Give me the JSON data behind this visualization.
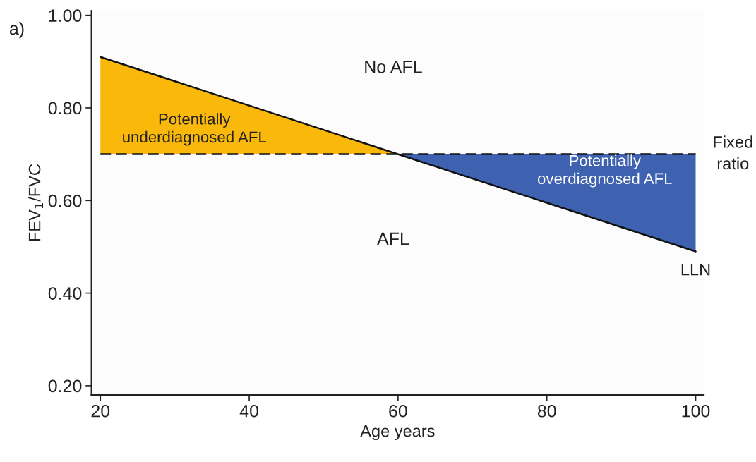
{
  "chart_data": {
    "type": "line",
    "xlabel": "Age years",
    "ylabel": "FEV$_{1}$/FVC",
    "xlim": [
      18.8,
      101.1
    ],
    "ylim": [
      0.18,
      1.01
    ],
    "xticks": [
      20,
      40,
      60,
      80,
      100
    ],
    "yticks": [
      {
        "value": 0.2,
        "label": "0.20"
      },
      {
        "value": 0.4,
        "label": "0.40"
      },
      {
        "value": 0.6,
        "label": "0.60"
      },
      {
        "value": 0.8,
        "label": "0.80"
      },
      {
        "value": 1.0,
        "label": "1.00"
      }
    ],
    "series": [
      {
        "type": "area",
        "x": [
          20,
          60
        ],
        "values": [
          0.91,
          0.7
        ],
        "color": "#f9b80a"
      },
      {
        "type": "area",
        "x": [
          60,
          100
        ],
        "values": [
          0.7,
          0.49
        ],
        "color": "#3e62b0"
      },
      {
        "name": "LLN",
        "x": [
          20,
          100
        ],
        "values": [
          0.91,
          0.49
        ],
        "color": "#111111"
      }
    ],
    "ref_lines": [
      {
        "axis": "y",
        "value": 0.7,
        "label": "Fixed ratio",
        "color": "#111111",
        "line_style": "dashed"
      }
    ],
    "annotations": [
      "a)",
      "No AFL",
      "AFL",
      "Potentially\nunderdiagnosed AFL",
      "Potentially\noverdiagnosed AFL"
    ],
    "grid": false,
    "legend": false,
    "line_style": "solid",
    "marker": "none"
  }
}
